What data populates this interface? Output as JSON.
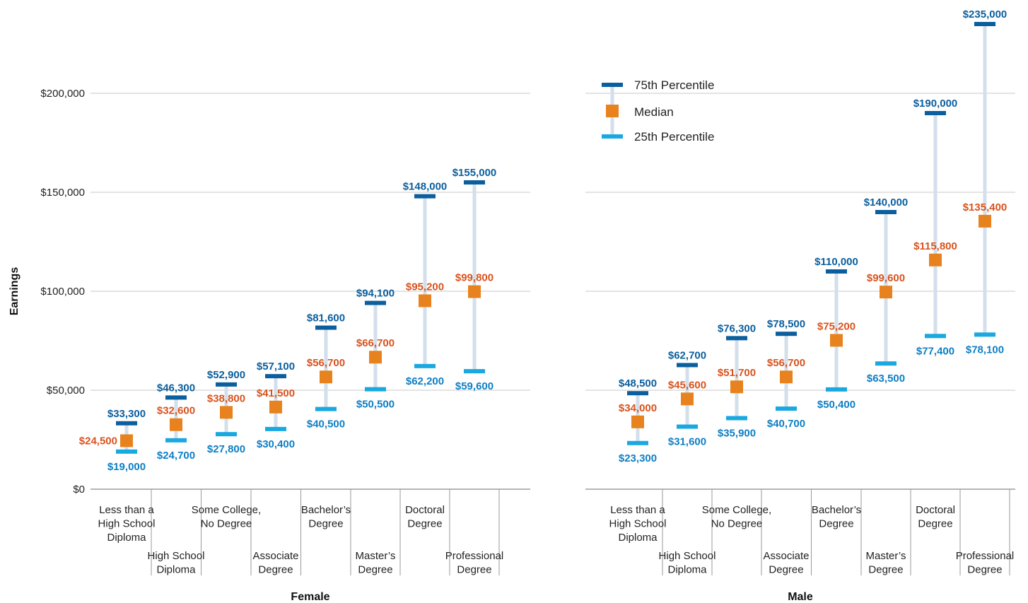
{
  "chart_data": {
    "type": "range-dot",
    "ylabel": "Earnings",
    "ylim": [
      0,
      240000
    ],
    "yticks": [
      0,
      50000,
      100000,
      150000,
      200000
    ],
    "ytick_labels": [
      "$0",
      "$50,000",
      "$100,000",
      "$150,000",
      "$200,000"
    ],
    "grid": true,
    "legend_position": "top-left of Male panel",
    "legend": {
      "p75": "75th Percentile",
      "median": "Median",
      "p25": "25th Percentile"
    },
    "colors": {
      "p75": "#0b5f9e",
      "median": "#e8821e",
      "p25": "#1aa8e0",
      "median_label": "#d9531e",
      "p75_label": "#0b5f9e",
      "p25_label": "#0e7fc4",
      "range": "#d3dfeb",
      "grid": "#c8c8c8"
    },
    "categories": [
      [
        "Less than a",
        "High School",
        "Diploma"
      ],
      [
        "High School",
        "Diploma"
      ],
      [
        "Some College,",
        "No Degree"
      ],
      [
        "Associate",
        "Degree"
      ],
      [
        "Bachelor’s",
        "Degree"
      ],
      [
        "Master’s",
        "Degree"
      ],
      [
        "Doctoral",
        "Degree"
      ],
      [
        "Professional",
        "Degree"
      ]
    ],
    "panels": [
      {
        "title": "Female",
        "p25": [
          19000,
          24700,
          27800,
          30400,
          40500,
          50500,
          62200,
          59600
        ],
        "median": [
          24500,
          32600,
          38800,
          41500,
          56700,
          66700,
          95200,
          99800
        ],
        "p75": [
          33300,
          46300,
          52900,
          57100,
          81600,
          94100,
          148000,
          155000
        ],
        "p25_labels": [
          "$19,000",
          "$24,700",
          "$27,800",
          "$30,400",
          "$40,500",
          "$50,500",
          "$62,200",
          "$59,600"
        ],
        "median_labels": [
          "$24,500",
          "$32,600",
          "$38,800",
          "$41,500",
          "$56,700",
          "$66,700",
          "$95,200",
          "$99,800"
        ],
        "p75_labels": [
          "$33,300",
          "$46,300",
          "$52,900",
          "$57,100",
          "$81,600",
          "$94,100",
          "$148,000",
          "$155,000"
        ]
      },
      {
        "title": "Male",
        "p25": [
          23300,
          31600,
          35900,
          40700,
          50400,
          63500,
          77400,
          78100
        ],
        "median": [
          34000,
          45600,
          51700,
          56700,
          75200,
          99600,
          115800,
          135400
        ],
        "p75": [
          48500,
          62700,
          76300,
          78500,
          110000,
          140000,
          190000,
          235000
        ],
        "p25_labels": [
          "$23,300",
          "$31,600",
          "$35,900",
          "$40,700",
          "$50,400",
          "$63,500",
          "$77,400",
          "$78,100"
        ],
        "median_labels": [
          "$34,000",
          "$45,600",
          "$51,700",
          "$56,700",
          "$75,200",
          "$99,600",
          "$115,800",
          "$135,400"
        ],
        "p75_labels": [
          "$48,500",
          "$62,700",
          "$76,300",
          "$78,500",
          "$110,000",
          "$140,000",
          "$190,000",
          "$235,000"
        ]
      }
    ]
  }
}
